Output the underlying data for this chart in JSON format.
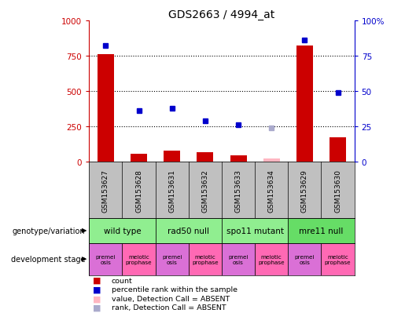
{
  "title": "GDS2663 / 4994_at",
  "samples": [
    "GSM153627",
    "GSM153628",
    "GSM153631",
    "GSM153632",
    "GSM153633",
    "GSM153634",
    "GSM153629",
    "GSM153630"
  ],
  "count_values": [
    760,
    55,
    75,
    65,
    45,
    20,
    820,
    170
  ],
  "count_absent": [
    false,
    false,
    false,
    false,
    false,
    true,
    false,
    false
  ],
  "rank_values": [
    82,
    36,
    38,
    29,
    26,
    24,
    86,
    49
  ],
  "rank_absent": [
    false,
    false,
    false,
    false,
    false,
    true,
    false,
    false
  ],
  "ylim_left": [
    0,
    1000
  ],
  "ylim_right": [
    0,
    100
  ],
  "yticks_left": [
    0,
    250,
    500,
    750,
    1000
  ],
  "yticks_right": [
    0,
    25,
    50,
    75,
    100
  ],
  "genotype_groups": [
    {
      "label": "wild type",
      "span": [
        0,
        2
      ],
      "color": "#90EE90"
    },
    {
      "label": "rad50 null",
      "span": [
        2,
        4
      ],
      "color": "#90EE90"
    },
    {
      "label": "spo11 mutant",
      "span": [
        4,
        6
      ],
      "color": "#90EE90"
    },
    {
      "label": "mre11 null",
      "span": [
        6,
        8
      ],
      "color": "#66DD66"
    }
  ],
  "dev_stage_labels": [
    "premei\nosis",
    "meiotic\nprophase",
    "premei\nosis",
    "meiotic\nprophase",
    "premei\nosis",
    "meiotic\nprophase",
    "premei\nosis",
    "meiotic\nprophase"
  ],
  "dev_premei_color": "#DA70D6",
  "dev_meiotic_color": "#FF69B4",
  "bar_color": "#CC0000",
  "bar_absent_color": "#FFB6C1",
  "rank_color": "#0000CC",
  "rank_absent_color": "#AAAACC",
  "sample_bg_color": "#C0C0C0",
  "grid_color": "black",
  "grid_linestyle": ":",
  "grid_linewidth": 0.8,
  "legend_items": [
    {
      "color": "#CC0000",
      "label": "count"
    },
    {
      "color": "#0000CC",
      "label": "percentile rank within the sample"
    },
    {
      "color": "#FFB6C1",
      "label": "value, Detection Call = ABSENT"
    },
    {
      "color": "#AAAACC",
      "label": "rank, Detection Call = ABSENT"
    }
  ]
}
